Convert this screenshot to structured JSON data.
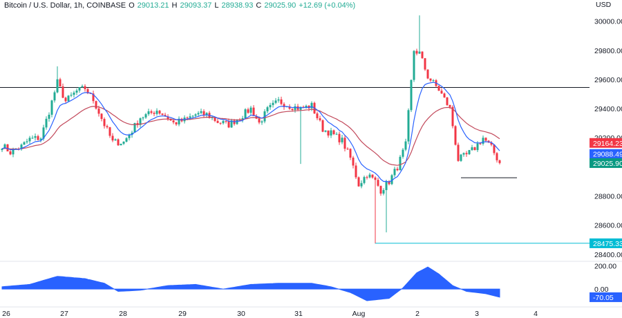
{
  "header": {
    "symbol": "Bitcoin / U.S. Dollar, 1h, COINBASE",
    "o_label": "O",
    "o_value": "29013.21",
    "h_label": "H",
    "h_value": "29093.37",
    "l_label": "L",
    "l_value": "28938.93",
    "c_label": "C",
    "c_value": "29025.90",
    "change": "+12.69 (+0.04%)"
  },
  "colors": {
    "up": "#22ab94",
    "down": "#f23645",
    "ma_fast": "#2962ff",
    "ma_slow": "#c2485a",
    "level": "#131722",
    "support": "#089981",
    "oscillator": "#2962ff",
    "tag_red": "#f23645",
    "tag_blue": "#2962ff",
    "tag_green": "#089981",
    "tag_teal": "#00bcd4"
  },
  "chart_data": {
    "type": "candlestick",
    "currency_label": "USD",
    "y_ticks": [
      "30000.00",
      "29800.00",
      "29600.00",
      "29400.00",
      "29200.00",
      "28800.00",
      "28600.00",
      "28400.00"
    ],
    "y_tick_values": [
      30000,
      29800,
      29600,
      29400,
      29200,
      28800,
      28600,
      28400
    ],
    "ylim": [
      28380,
      30060
    ],
    "x_ticks": [
      "26",
      "27",
      "28",
      "29",
      "30",
      "31",
      "Aug",
      "2",
      "3",
      "4"
    ],
    "price_tags": [
      {
        "label": "29164.23",
        "value": 29164.23,
        "color_key": "tag_red"
      },
      {
        "label": "29088.49",
        "value": 29088.49,
        "color_key": "tag_blue"
      },
      {
        "label": "29025.90",
        "value": 29025.9,
        "color_key": "tag_green"
      },
      {
        "label": "28475.33",
        "value": 28475.33,
        "color_key": "tag_teal"
      }
    ],
    "resistance_level": 29545,
    "support_level": 28925,
    "low_marker": 28475.33,
    "anchors": [
      [
        0,
        29150
      ],
      [
        3,
        29100
      ],
      [
        7,
        29140
      ],
      [
        10,
        29190
      ],
      [
        14,
        29200
      ],
      [
        17,
        29380
      ],
      [
        20,
        29580
      ],
      [
        23,
        29450
      ],
      [
        27,
        29520
      ],
      [
        30,
        29540
      ],
      [
        33,
        29460
      ],
      [
        37,
        29290
      ],
      [
        40,
        29170
      ],
      [
        44,
        29170
      ],
      [
        47,
        29250
      ],
      [
        50,
        29340
      ],
      [
        53,
        29360
      ],
      [
        56,
        29390
      ],
      [
        59,
        29350
      ],
      [
        62,
        29300
      ],
      [
        66,
        29320
      ],
      [
        70,
        29360
      ],
      [
        74,
        29360
      ],
      [
        78,
        29310
      ],
      [
        82,
        29290
      ],
      [
        86,
        29340
      ],
      [
        90,
        29400
      ],
      [
        93,
        29300
      ],
      [
        96,
        29390
      ],
      [
        100,
        29450
      ],
      [
        104,
        29420
      ],
      [
        108,
        29400
      ],
      [
        112,
        29420
      ],
      [
        116,
        29260
      ],
      [
        119,
        29230
      ],
      [
        123,
        29180
      ],
      [
        126,
        29060
      ],
      [
        129,
        28880
      ],
      [
        132,
        28950
      ],
      [
        135,
        28900
      ],
      [
        137,
        28840
      ],
      [
        140,
        28900
      ],
      [
        143,
        29000
      ],
      [
        146,
        29150
      ],
      [
        149,
        29800
      ],
      [
        151,
        29780
      ],
      [
        154,
        29620
      ],
      [
        158,
        29530
      ],
      [
        162,
        29400
      ],
      [
        165,
        29050
      ],
      [
        168,
        29080
      ],
      [
        171,
        29130
      ],
      [
        174,
        29200
      ],
      [
        177,
        29130
      ],
      [
        180,
        29026
      ]
    ],
    "wick_spikes": [
      {
        "bar": 20,
        "high": 29690
      },
      {
        "bar": 135,
        "low": 28475.33
      },
      {
        "bar": 139,
        "low": 28550
      },
      {
        "bar": 151,
        "high": 30040
      },
      {
        "bar": 108,
        "low": 29020
      }
    ],
    "oscillator": {
      "y_ticks": [
        "200.00",
        "0.00"
      ],
      "y_tick_values": [
        200,
        0
      ],
      "ylim": [
        -130,
        215
      ],
      "current": -70.05,
      "current_label": "-70.05",
      "anchors": [
        [
          0,
          20
        ],
        [
          10,
          40
        ],
        [
          20,
          110
        ],
        [
          30,
          90
        ],
        [
          37,
          50
        ],
        [
          42,
          -20
        ],
        [
          50,
          -10
        ],
        [
          60,
          30
        ],
        [
          70,
          40
        ],
        [
          80,
          0
        ],
        [
          90,
          40
        ],
        [
          100,
          50
        ],
        [
          112,
          50
        ],
        [
          119,
          20
        ],
        [
          126,
          -30
        ],
        [
          132,
          -100
        ],
        [
          140,
          -80
        ],
        [
          145,
          10
        ],
        [
          150,
          140
        ],
        [
          154,
          190
        ],
        [
          158,
          130
        ],
        [
          163,
          30
        ],
        [
          168,
          -20
        ],
        [
          175,
          -40
        ],
        [
          180,
          -70.05
        ]
      ]
    }
  }
}
